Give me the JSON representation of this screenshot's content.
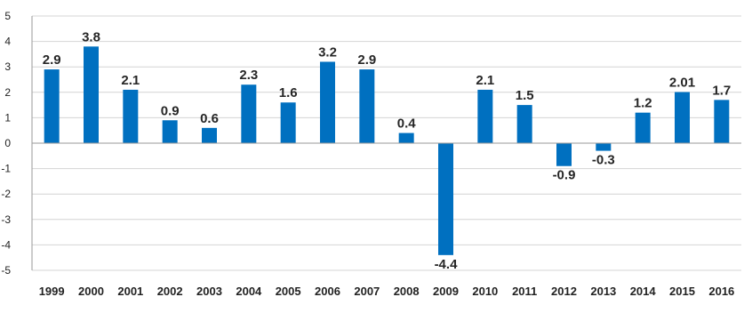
{
  "chart_data": {
    "type": "bar",
    "title": "",
    "xlabel": "",
    "ylabel": "",
    "categories": [
      "1999",
      "2000",
      "2001",
      "2002",
      "2003",
      "2004",
      "2005",
      "2006",
      "2007",
      "2008",
      "2009",
      "2010",
      "2011",
      "2012",
      "2013",
      "2014",
      "2015",
      "2016"
    ],
    "values": [
      2.9,
      3.8,
      2.1,
      0.9,
      0.6,
      2.3,
      1.6,
      3.2,
      2.9,
      0.4,
      -4.4,
      2.1,
      1.5,
      -0.9,
      -0.3,
      1.2,
      2.01,
      1.7
    ],
    "data_labels": [
      "2.9",
      "3.8",
      "2.1",
      "0.9",
      "0.6",
      "2.3",
      "1.6",
      "3.2",
      "2.9",
      "0.4",
      "-4.4",
      "2.1",
      "1.5",
      "-0.9",
      "-0.3",
      "1.2",
      "2.01",
      "1.7"
    ],
    "ylim": [
      -5,
      5
    ],
    "yticks": [
      "5",
      "4",
      "3",
      "2",
      "1",
      "0",
      "-1",
      "-2",
      "-3",
      "-4",
      "-5"
    ],
    "grid": true,
    "legend": "none",
    "colors": {
      "bar": "#0070C0",
      "grid": "#D4D4D4",
      "axis": "#9A9A9A"
    }
  }
}
